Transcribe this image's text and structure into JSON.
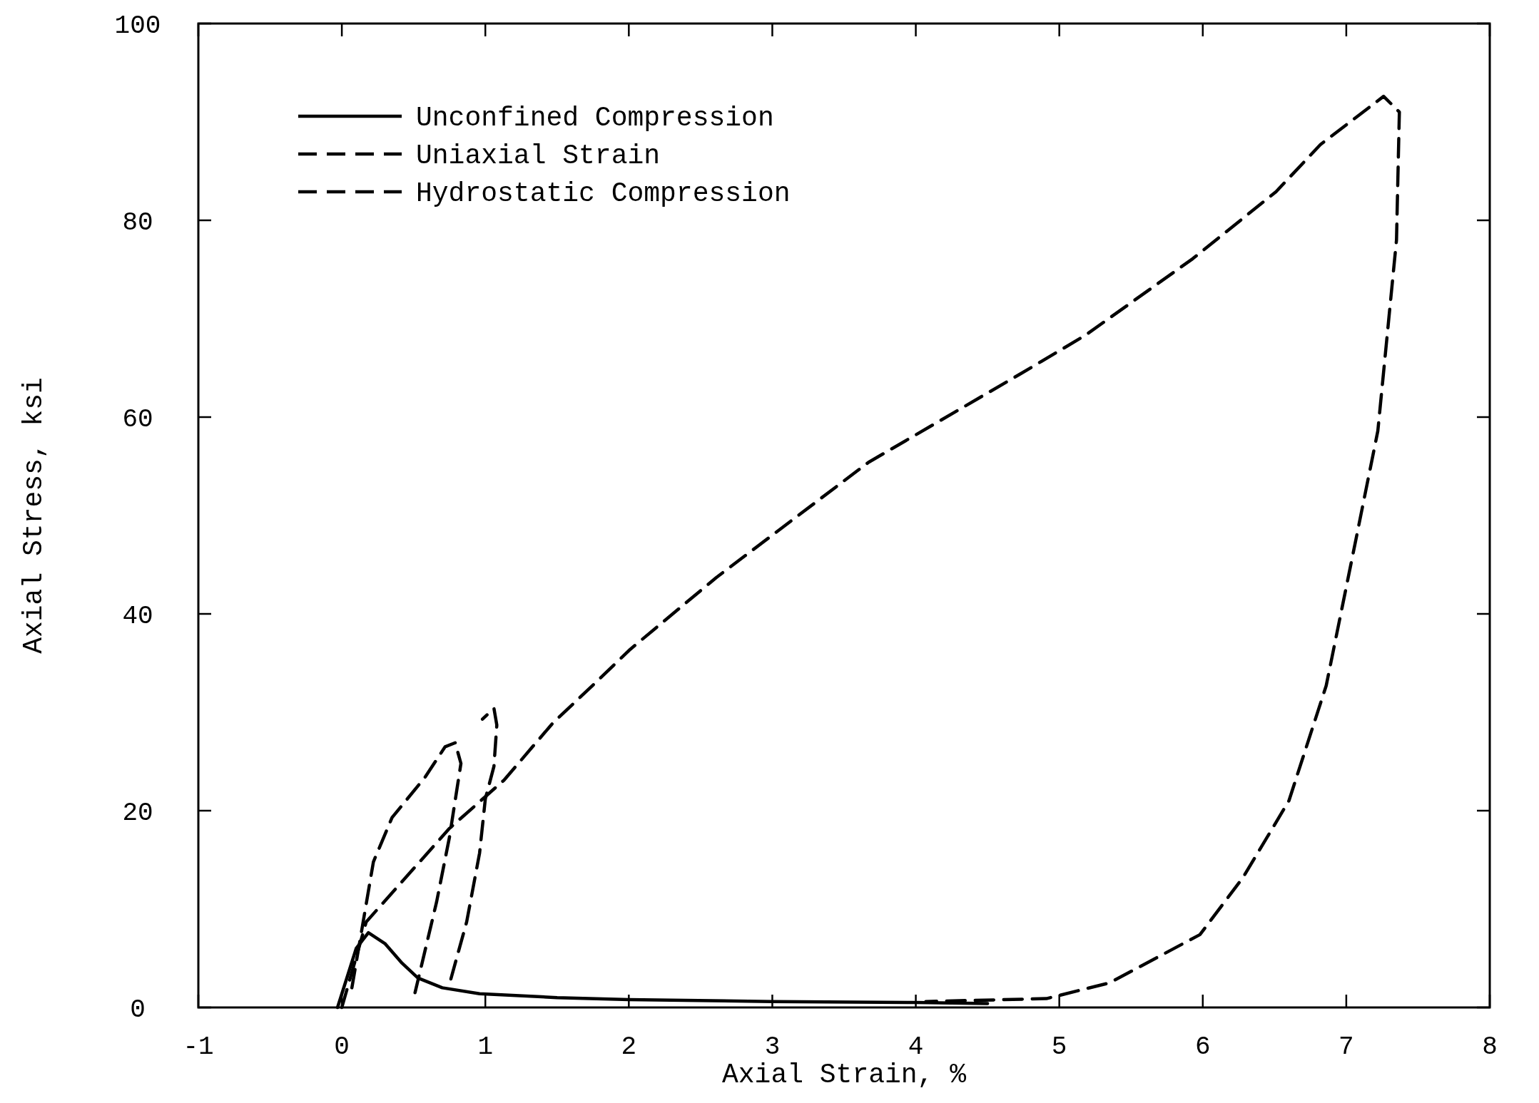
{
  "chart_data": {
    "type": "line",
    "xlabel": "Axial Strain, %",
    "ylabel": "Axial Stress, ksi",
    "xlim": [
      -1,
      8
    ],
    "xticks": [
      -1,
      0,
      1,
      2,
      3,
      4,
      5,
      6,
      7,
      8
    ],
    "ylim": [
      0,
      100
    ],
    "yticks": [
      0,
      20,
      40,
      60,
      80,
      100
    ],
    "grid": false,
    "legend": "top left",
    "marker": "none",
    "series": [
      {
        "name": "Unconfined Compression",
        "color": "#000000",
        "line_style": "solid",
        "x": [
          -0.03,
          0.1,
          0.185,
          0.3,
          0.42,
          0.53,
          0.7,
          0.96,
          1.5,
          2,
          3,
          4,
          4.5
        ],
        "values": [
          0,
          6,
          7.6,
          6.5,
          4.5,
          3.0,
          2.0,
          1.4,
          1.0,
          0.8,
          0.6,
          0.5,
          0.4
        ]
      },
      {
        "name": "Uniaxial Strain",
        "color": "#000000",
        "line_style": "dashed",
        "x": [
          0.07,
          0.22,
          0.35,
          0.58,
          0.72,
          0.79,
          0.83,
          0.75,
          0.66,
          0.51,
          0.6,
          0.76,
          0.87,
          0.96,
          1.0,
          1.06,
          1.08,
          1.06,
          0.98
        ],
        "values": [
          2,
          14.8,
          19.3,
          23.4,
          26.5,
          26.9,
          24.8,
          17.3,
          10.7,
          1.5,
          null,
          2.9,
          8.7,
          15.7,
          21.2,
          24.5,
          28.7,
          30.4,
          29.3
        ]
      },
      {
        "name": "Hydrostatic Compression",
        "color": "#000000",
        "line_style": "dashed",
        "x": [
          0,
          0.17,
          0.75,
          1.13,
          1.47,
          1.76,
          2.01,
          2.61,
          3.67,
          4.73,
          5.18,
          5.93,
          6.51,
          6.82,
          7.26,
          7.37,
          7.35,
          7.22,
          7.04,
          6.86,
          6.6,
          6.28,
          5.98,
          5.35,
          4.91,
          4.07
        ],
        "values": [
          0,
          8.7,
          18.2,
          23.1,
          28.9,
          32.9,
          36.4,
          43.7,
          55.4,
          64.4,
          68.3,
          76.1,
          82.9,
          87.7,
          92.6,
          91.0,
          78.0,
          58.6,
          45.6,
          32.7,
          21.0,
          13.2,
          7.4,
          2.5,
          0.9,
          0.6
        ]
      }
    ]
  }
}
